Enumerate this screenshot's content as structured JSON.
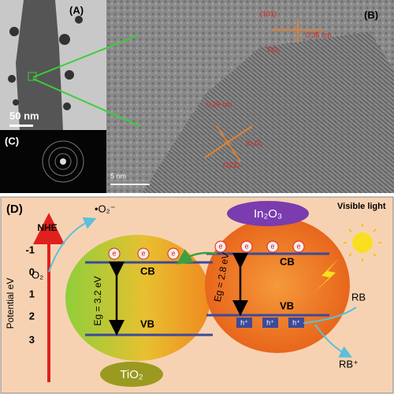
{
  "panel_a": {
    "label": "(A)",
    "scale_bar": "50 nm"
  },
  "panel_b": {
    "label": "(B)",
    "scale_bar": "5 nm",
    "planes": [
      {
        "hkl": "(101)",
        "spacing": "0.35 nm",
        "phase": "TiO₂"
      },
      {
        "hkl": "(222)",
        "spacing": "0.29 nm",
        "phase": "In₂O₃"
      }
    ]
  },
  "panel_c": {
    "label": "(C)"
  },
  "panel_d": {
    "label": "(D)",
    "reference": "NHE",
    "axis_title": "Potential eV",
    "axis_ticks": [
      "-1",
      "0",
      "1",
      "2",
      "3"
    ],
    "superoxide": "•O₂⁻",
    "oxygen": "O₂",
    "tio2": {
      "name": "TiO₂",
      "cb": "CB",
      "vb": "VB",
      "gap": "Eg = 3.2 eV",
      "electrons": [
        "e",
        "e",
        "e"
      ]
    },
    "in2o3": {
      "name": "In₂O₃",
      "cb": "CB",
      "vb": "VB",
      "gap": "Eg = 2.8 eV",
      "electrons": [
        "e",
        "e",
        "e",
        "e"
      ],
      "holes": [
        "h⁺",
        "h⁺",
        "h⁺"
      ]
    },
    "light": "Visible light",
    "dye": "RB",
    "dye_oxidized": "RB⁺"
  }
}
